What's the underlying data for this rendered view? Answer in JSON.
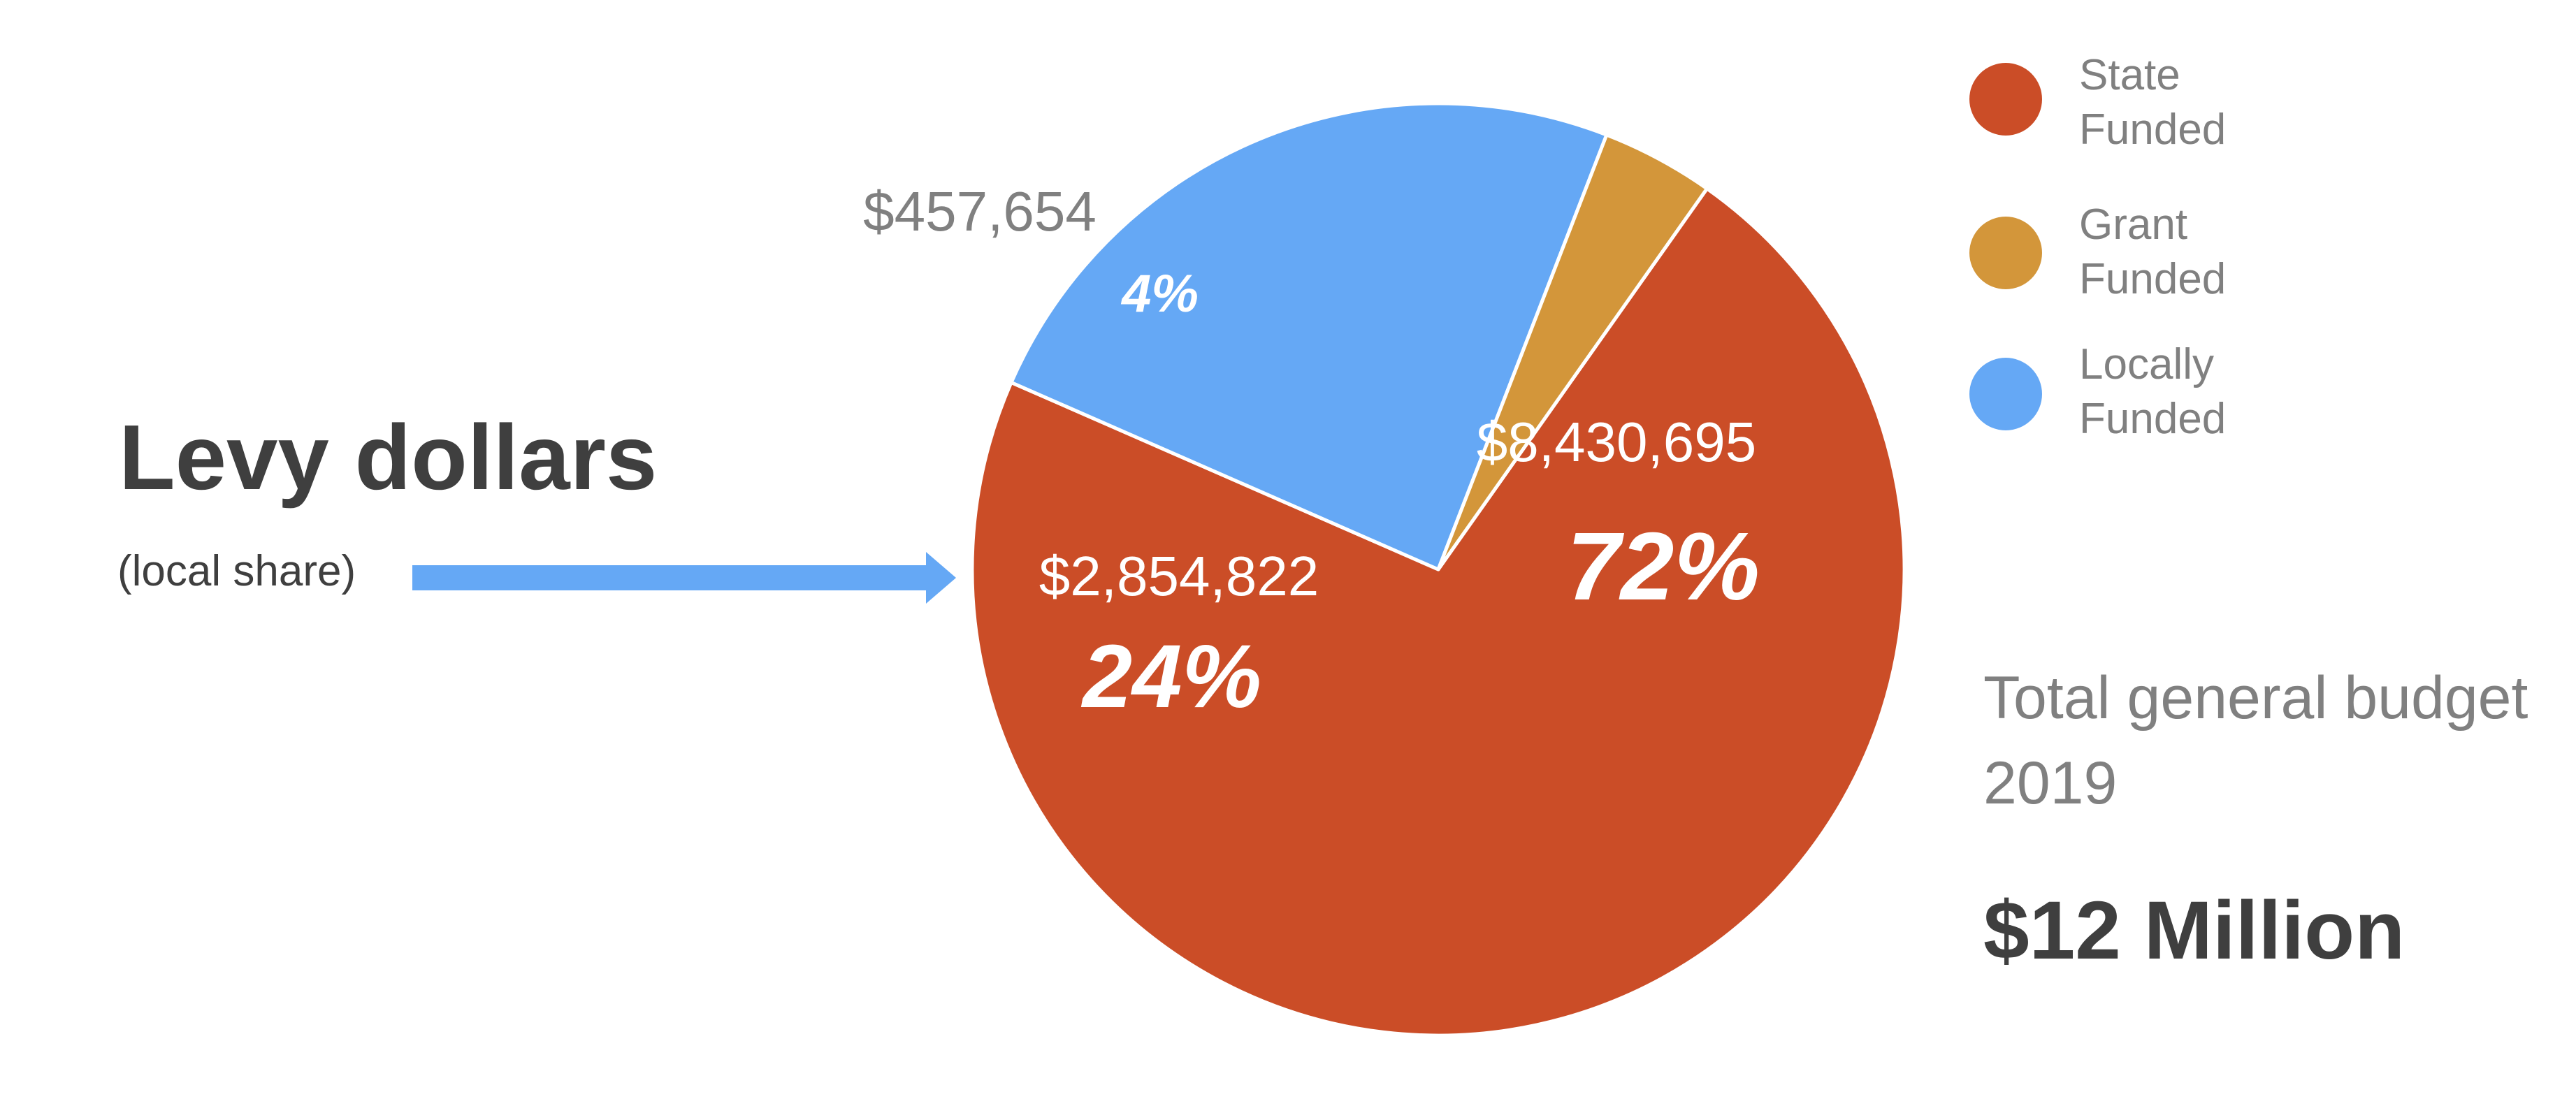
{
  "callout": {
    "title": "Levy dollars",
    "subtitle": "(local share)"
  },
  "summary": {
    "label_line1": "Total general budget",
    "label_line2": "2019",
    "total": "$12 Million"
  },
  "colors": {
    "state": "#CB4D27",
    "grant": "#D3963A",
    "local": "#65A8F5",
    "arrow": "#65A8F5",
    "dark_text": "#3F3F3F",
    "gray_text": "#808080"
  },
  "chart_data": {
    "type": "pie",
    "legend_position": "top-right",
    "slices": [
      {
        "name_line1": "State",
        "name_line2": "Funded",
        "value": 8430695,
        "value_label": "$8,430,695",
        "percent_label": "72%",
        "color": "#CB4D27"
      },
      {
        "name_line1": "Locally",
        "name_line2": "Funded",
        "value": 2854822,
        "value_label": "$2,854,822",
        "percent_label": "24%",
        "color": "#65A8F5"
      },
      {
        "name_line1": "Grant",
        "name_line2": "Funded",
        "value": 457654,
        "value_label": "$457,654",
        "percent_label": "4%",
        "color": "#D3963A"
      }
    ],
    "legend_order": [
      0,
      2,
      1
    ]
  }
}
